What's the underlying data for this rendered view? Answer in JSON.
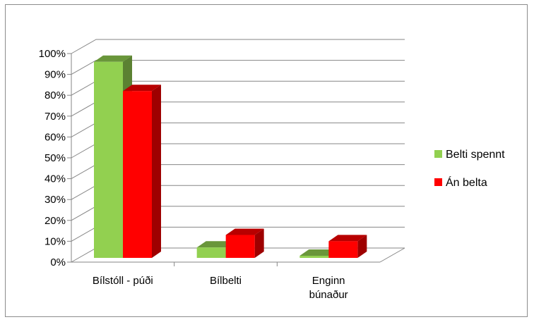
{
  "chart_data": {
    "type": "bar",
    "categories": [
      "Bílstóll - púði",
      "Bílbelti",
      "Enginn\nbúnaður"
    ],
    "series": [
      {
        "name": "Belti spennt",
        "values": [
          94,
          5,
          1
        ],
        "color": "#92d050"
      },
      {
        "name": "Án belta",
        "values": [
          80,
          11,
          8
        ],
        "color": "#ff0000"
      }
    ],
    "ylim": [
      0,
      100
    ],
    "yticks": [
      "0%",
      "10%",
      "20%",
      "30%",
      "40%",
      "50%",
      "60%",
      "70%",
      "80%",
      "90%",
      "100%"
    ],
    "grid": true,
    "legend_position": "right",
    "style": "3d-clustered-column"
  }
}
